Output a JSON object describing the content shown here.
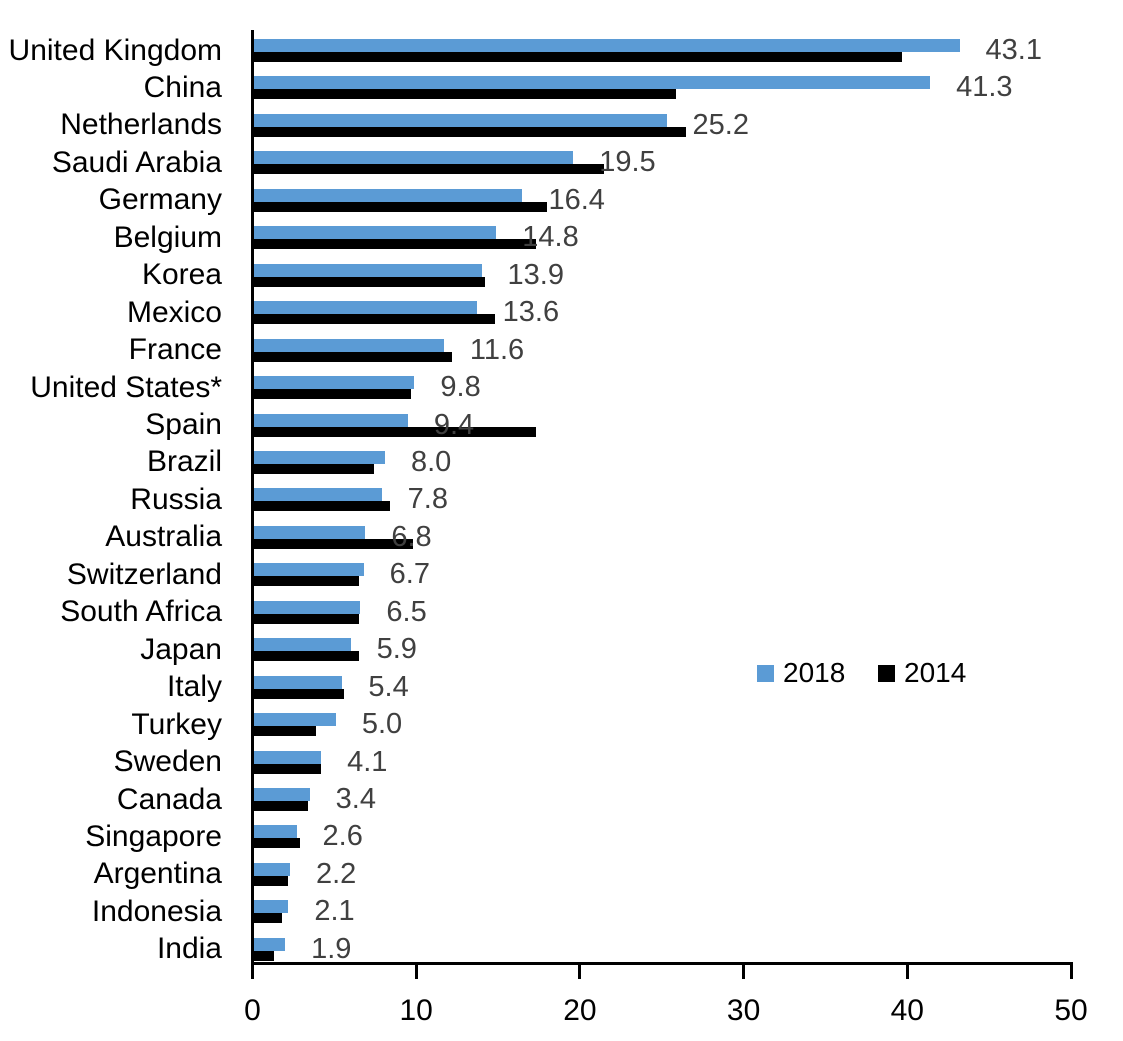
{
  "chart_data": {
    "type": "bar",
    "orientation": "horizontal",
    "title": "",
    "xlabel": "",
    "ylabel": "",
    "xlim": [
      0,
      50
    ],
    "x_ticks": [
      0,
      10,
      20,
      30,
      40,
      50
    ],
    "grid": false,
    "legend_position": "middle-right",
    "categories": [
      "United Kingdom",
      "China",
      "Netherlands",
      "Saudi Arabia",
      "Germany",
      "Belgium",
      "Korea",
      "Mexico",
      "France",
      "United States*",
      "Spain",
      "Brazil",
      "Russia",
      "Australia",
      "Switzerland",
      "South Africa",
      "Japan",
      "Italy",
      "Turkey",
      "Sweden",
      "Canada",
      "Singapore",
      "Argentina",
      "Indonesia",
      "India"
    ],
    "series": [
      {
        "name": "2018",
        "color": "#5B9BD5",
        "values": [
          43.1,
          41.3,
          25.2,
          19.5,
          16.4,
          14.8,
          13.9,
          13.6,
          11.6,
          9.8,
          9.4,
          8.0,
          7.8,
          6.8,
          6.7,
          6.5,
          5.9,
          5.4,
          5.0,
          4.1,
          3.4,
          2.6,
          2.2,
          2.1,
          1.9
        ],
        "data_labels": [
          "43.1",
          "41.3",
          "25.2",
          "19.5",
          "16.4",
          "14.8",
          "13.9",
          "13.6",
          "11.6",
          "9.8",
          "9.4",
          "8.0",
          "7.8",
          "6.8",
          "6.7",
          "6.5",
          "5.9",
          "5.4",
          "5.0",
          "4.1",
          "3.4",
          "2.6",
          "2.2",
          "2.1",
          "1.9"
        ]
      },
      {
        "name": "2014",
        "color": "#000000",
        "values": [
          39.6,
          25.8,
          26.4,
          21.4,
          17.9,
          17.2,
          14.1,
          14.7,
          12.1,
          9.6,
          17.2,
          7.3,
          8.3,
          9.7,
          6.4,
          6.4,
          6.4,
          5.5,
          3.8,
          4.1,
          3.3,
          2.8,
          2.1,
          1.7,
          1.2
        ]
      }
    ],
    "value_label_color": "#404040",
    "axis_color": "#000000",
    "background_color": "#ffffff"
  },
  "legend": {
    "items": [
      {
        "label": "2018",
        "color": "#5B9BD5"
      },
      {
        "label": "2014",
        "color": "#000000"
      }
    ]
  }
}
